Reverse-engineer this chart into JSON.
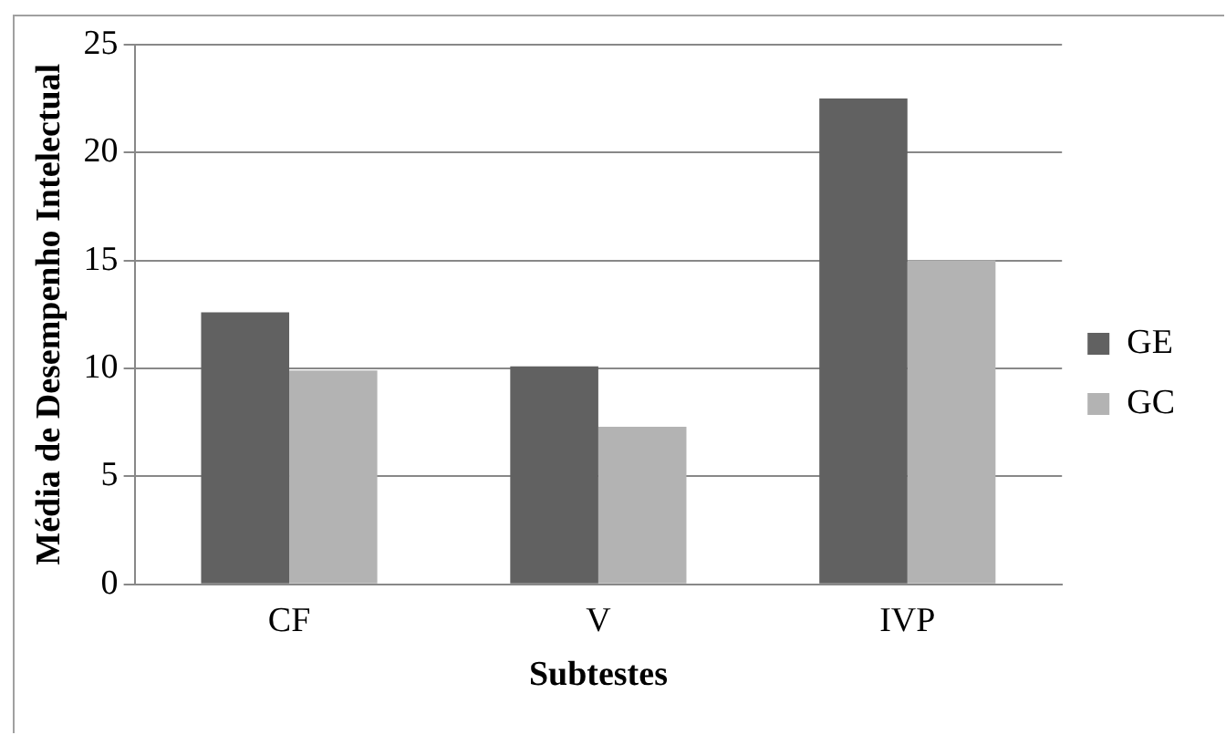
{
  "chart_data": {
    "type": "bar",
    "xlabel": "Subtestes",
    "ylabel": "Média de Desempenho Intelectual",
    "categories": [
      "CF",
      "V",
      "IVP"
    ],
    "series": [
      {
        "name": "GE",
        "color": "#616161",
        "values": [
          12.6,
          10.1,
          22.5
        ]
      },
      {
        "name": "GC",
        "color": "#b3b3b3",
        "values": [
          9.9,
          7.3,
          15
        ]
      }
    ],
    "ylim": [
      0,
      25
    ],
    "yticks": [
      0,
      5,
      10,
      15,
      20,
      25
    ],
    "grid": "y",
    "legend": "right"
  }
}
